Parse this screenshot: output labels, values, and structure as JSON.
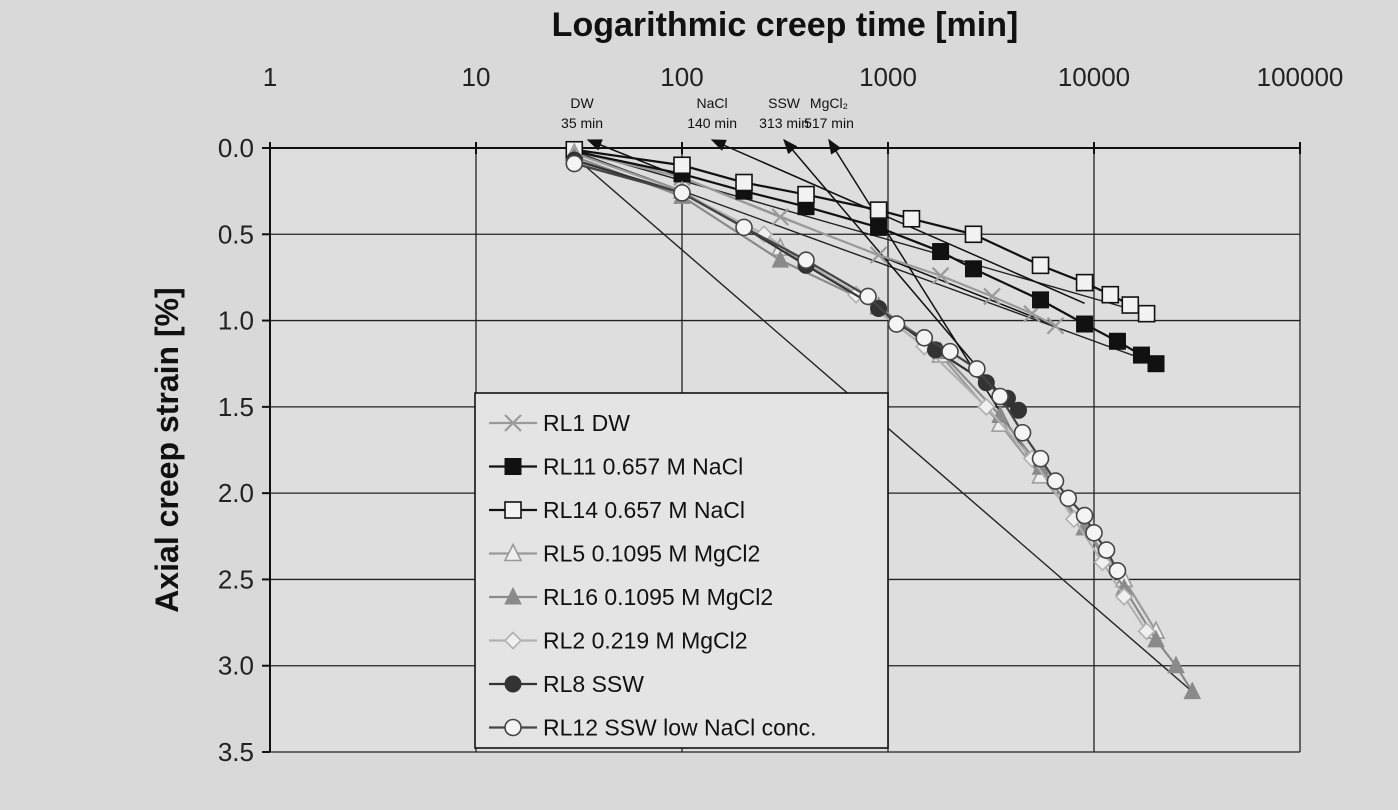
{
  "chart_data": {
    "type": "scatter",
    "title": "Logarithmic creep time [min]",
    "xlabel": "Logarithmic creep time [min]",
    "ylabel": "Axial creep strain [%]",
    "x_scale": "log",
    "xlim": [
      1,
      100000
    ],
    "ylim": [
      0,
      3.5
    ],
    "y_inverted": true,
    "x_ticks": [
      "1",
      "10",
      "100",
      "1000",
      "10000",
      "100000"
    ],
    "y_ticks": [
      "0.0",
      "0.5",
      "1.0",
      "1.5",
      "2.0",
      "2.5",
      "3.0",
      "3.5"
    ],
    "grid": true,
    "legend_position": "bottom-center",
    "annotations": [
      {
        "text": "DW",
        "text2": "35 min",
        "x": 35,
        "y": 0.0
      },
      {
        "text": "NaCl",
        "text2": "140 min",
        "x": 140,
        "y": 0.0
      },
      {
        "text": "SSW",
        "text2": "313 min",
        "x": 313,
        "y": 0.0
      },
      {
        "text": "MgCl₂",
        "text2": "517 min",
        "x": 517,
        "y": 0.0
      }
    ],
    "series": [
      {
        "name": "RL1 DW",
        "marker": "x",
        "color": "#9a9a9a",
        "x": [
          30,
          100,
          300,
          900,
          1800,
          3200,
          5000,
          6500
        ],
        "y": [
          0.02,
          0.17,
          0.4,
          0.62,
          0.74,
          0.86,
          0.96,
          1.03
        ]
      },
      {
        "name": "RL11 0.657 M NaCl",
        "marker": "filled-square",
        "color": "#111111",
        "x": [
          30,
          100,
          200,
          400,
          900,
          1800,
          2600,
          5500,
          9000,
          13000,
          17000,
          20000
        ],
        "y": [
          0.02,
          0.15,
          0.25,
          0.34,
          0.46,
          0.6,
          0.7,
          0.88,
          1.02,
          1.12,
          1.2,
          1.25
        ]
      },
      {
        "name": "RL14 0.657 M NaCl",
        "marker": "open-square",
        "color": "#111111",
        "x": [
          30,
          100,
          200,
          400,
          900,
          1300,
          2600,
          5500,
          9000,
          12000,
          15000,
          18000
        ],
        "y": [
          0.01,
          0.1,
          0.2,
          0.27,
          0.36,
          0.41,
          0.5,
          0.68,
          0.78,
          0.85,
          0.91,
          0.96
        ]
      },
      {
        "name": "RL5 0.1095 M MgCl2",
        "marker": "open-triangle",
        "color": "#9a9a9a",
        "x": [
          30,
          100,
          300,
          900,
          1800,
          3500,
          5500,
          9000,
          14000,
          20000
        ],
        "y": [
          0.03,
          0.25,
          0.58,
          0.92,
          1.2,
          1.6,
          1.9,
          2.2,
          2.5,
          2.8
        ]
      },
      {
        "name": "RL16 0.1095 M MgCl2",
        "marker": "filled-triangle",
        "color": "#8a8a8a",
        "x": [
          30,
          100,
          300,
          900,
          1800,
          3500,
          5500,
          9000,
          14000,
          20000,
          25000,
          30000
        ],
        "y": [
          0.05,
          0.28,
          0.65,
          0.92,
          1.18,
          1.55,
          1.85,
          2.2,
          2.55,
          2.85,
          3.0,
          3.15
        ]
      },
      {
        "name": "RL2 0.219 M MgCl2",
        "marker": "open-diamond",
        "color": "#b0b0b0",
        "x": [
          30,
          100,
          250,
          700,
          1500,
          3000,
          5000,
          8000,
          11000,
          14000,
          18000
        ],
        "y": [
          0.08,
          0.26,
          0.5,
          0.85,
          1.15,
          1.5,
          1.8,
          2.15,
          2.4,
          2.6,
          2.8
        ]
      },
      {
        "name": "RL8 SSW",
        "marker": "filled-circle",
        "color": "#333333",
        "x": [
          30,
          100,
          200,
          400,
          900,
          1700,
          3000,
          3800,
          4300
        ],
        "y": [
          0.07,
          0.26,
          0.46,
          0.68,
          0.93,
          1.17,
          1.36,
          1.45,
          1.52
        ]
      },
      {
        "name": "RL12 SSW low NaCl conc.",
        "marker": "open-circle",
        "color": "#444444",
        "x": [
          30,
          100,
          200,
          400,
          800,
          1100,
          1500,
          2000,
          2700,
          3500,
          4500,
          5500,
          6500,
          7500,
          9000,
          10000,
          11500,
          13000
        ],
        "y": [
          0.09,
          0.26,
          0.46,
          0.65,
          0.86,
          1.02,
          1.1,
          1.18,
          1.28,
          1.44,
          1.65,
          1.8,
          1.93,
          2.03,
          2.13,
          2.23,
          2.33,
          2.45
        ]
      }
    ]
  }
}
